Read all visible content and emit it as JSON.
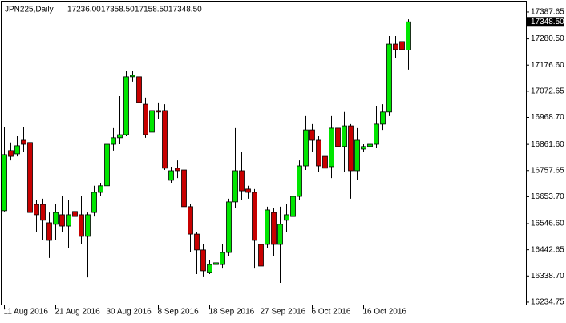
{
  "chart_data": {
    "type": "candlestick",
    "title": "JPN225,Daily",
    "header_values": [
      17236.0,
      17358.5,
      17158.5,
      17348.5
    ],
    "header_value_labels": [
      "17236.00",
      "17358.50",
      "17158.50",
      "17348.50"
    ],
    "current_price": {
      "value": 17348.5,
      "label": "17348.50"
    },
    "categories": [
      "11 Aug 2016",
      null,
      null,
      null,
      null,
      null,
      null,
      null,
      "21 Aug 2016",
      null,
      null,
      null,
      null,
      null,
      null,
      null,
      "30 Aug 2016",
      null,
      null,
      null,
      null,
      null,
      null,
      null,
      "8 Sep 2016",
      null,
      null,
      null,
      null,
      null,
      null,
      null,
      "18 Sep 2016",
      null,
      null,
      null,
      null,
      null,
      null,
      null,
      "27 Sep 2016",
      null,
      null,
      null,
      null,
      null,
      null,
      null,
      "6 Oct 2016",
      null,
      null,
      null,
      null,
      null,
      null,
      null,
      "16 Oct 2016",
      null,
      null,
      null,
      null,
      null,
      null,
      null
    ],
    "open": [
      16598,
      16837,
      16824,
      16878,
      16869,
      16623,
      16623,
      16550,
      16544,
      16582,
      16537,
      16595,
      16582,
      16496,
      16591,
      16671,
      16697,
      16862,
      16888,
      16900,
      17130,
      17130,
      17021,
      16910,
      16996,
      16996,
      16719,
      16767,
      16760,
      16614,
      16505,
      16442,
      16353,
      16384,
      16384,
      16432,
      16633,
      16757,
      16684,
      16671,
      16464,
      16464,
      16591,
      16464,
      16560,
      16575,
      16655,
      16776,
      16919,
      16878,
      16814,
      16773,
      16926,
      16853,
      16935,
      16757,
      16843,
      16853,
      16862,
      16942,
      16990,
      17260,
      17270,
      17236
    ],
    "high": [
      16932,
      16869,
      16894,
      16932,
      16900,
      16639,
      16646,
      16591,
      16623,
      16655,
      16639,
      16623,
      16655,
      16591,
      16697,
      16709,
      16878,
      16926,
      17053,
      17155,
      17155,
      17149,
      17047,
      17028,
      17028,
      17021,
      16773,
      16798,
      16783,
      16623,
      16512,
      16464,
      16400,
      16432,
      16464,
      16646,
      16926,
      16830,
      16697,
      16684,
      16607,
      16614,
      16607,
      16614,
      16623,
      16677,
      16798,
      16974,
      16942,
      16894,
      16846,
      16974,
      17069,
      16990,
      16942,
      16926,
      16862,
      16894,
      17015,
      17021,
      17292,
      17292,
      17292,
      17358.5
    ],
    "low": [
      16595,
      16798,
      16814,
      16830,
      16560,
      16512,
      16480,
      16410,
      16480,
      16512,
      16448,
      16560,
      16464,
      16333,
      16575,
      16655,
      16671,
      16837,
      16862,
      16894,
      17111,
      17015,
      16888,
      16894,
      16964,
      16760,
      16709,
      16728,
      16601,
      16432,
      16346,
      16337,
      16346,
      16368,
      16368,
      16416,
      16607,
      16639,
      16646,
      16368,
      16257,
      16448,
      16416,
      16311,
      16512,
      16560,
      16639,
      16760,
      16830,
      16751,
      16741,
      16728,
      16767,
      16751,
      16646,
      16719,
      16830,
      16837,
      16846,
      16919,
      16974,
      17206,
      17197,
      17158.5
    ],
    "close": [
      16821,
      16814,
      16856,
      16862,
      16591,
      16582,
      16560,
      16480,
      16591,
      16537,
      16582,
      16575,
      16496,
      16582,
      16671,
      16697,
      16862,
      16888,
      16900,
      17130,
      17136,
      17028,
      16900,
      16996,
      16990,
      16767,
      16757,
      16757,
      16614,
      16505,
      16442,
      16359,
      16384,
      16391,
      16432,
      16633,
      16757,
      16677,
      16671,
      16480,
      16378,
      16601,
      16464,
      16544,
      16582,
      16655,
      16776,
      16919,
      16878,
      16776,
      16767,
      16926,
      16853,
      16935,
      16757,
      16878,
      16853,
      16862,
      16942,
      16990,
      17260,
      17238,
      17238,
      17348.5
    ],
    "up_color": "#00e600",
    "down_color": "#c80000",
    "ylim": [
      16225,
      17413
    ],
    "yticks": [
      {
        "value": 17387.65,
        "label": "17387.65"
      },
      {
        "value": 17280.5,
        "label": "17280.50"
      },
      {
        "value": 17176.6,
        "label": "17176.60"
      },
      {
        "value": 17072.65,
        "label": "17072.65"
      },
      {
        "value": 16968.7,
        "label": "16968.70"
      },
      {
        "value": 16861.6,
        "label": "16861.60"
      },
      {
        "value": 16757.65,
        "label": "16757.65"
      },
      {
        "value": 16653.7,
        "label": "16653.70"
      },
      {
        "value": 16546.6,
        "label": "16546.60"
      },
      {
        "value": 16442.65,
        "label": "16442.65"
      },
      {
        "value": 16338.7,
        "label": "16338.70"
      },
      {
        "value": 16234.75,
        "label": "16234.75"
      }
    ]
  }
}
